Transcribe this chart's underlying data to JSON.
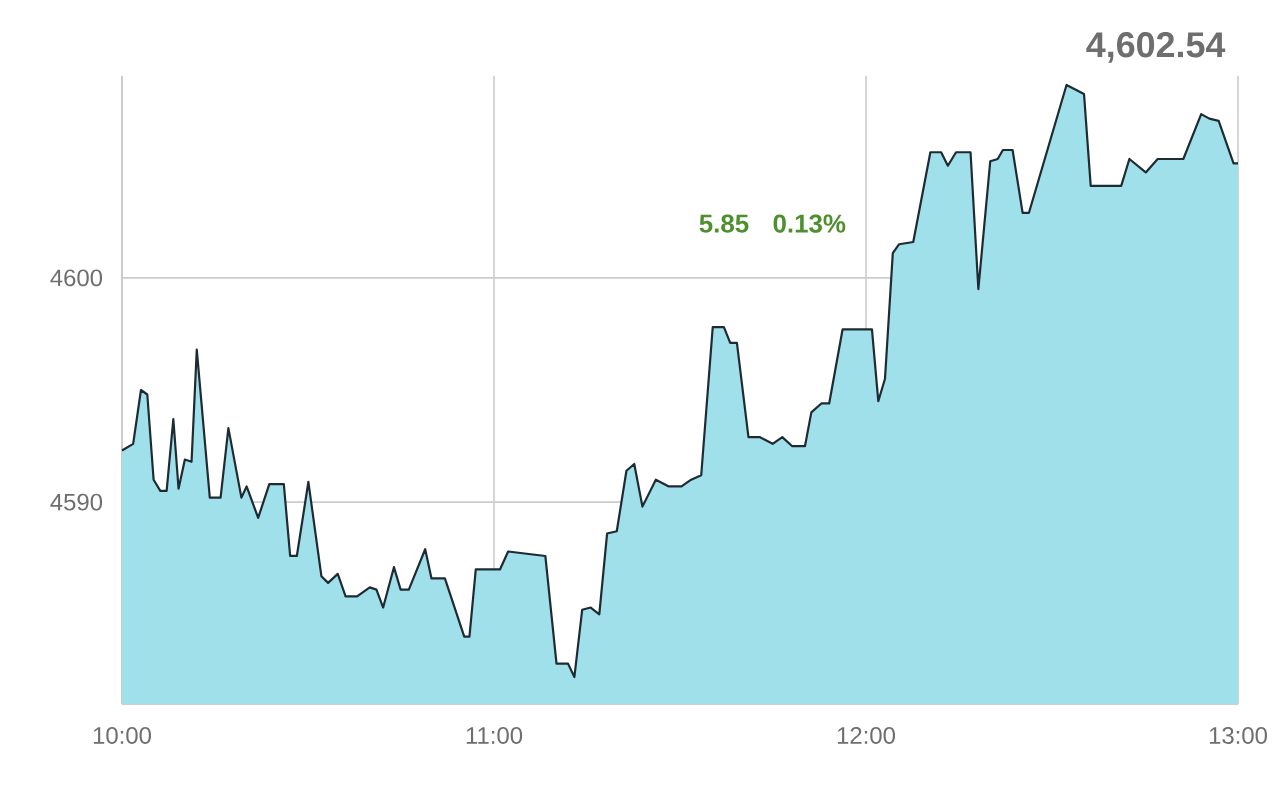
{
  "chart_data": {
    "type": "area",
    "title": "4,602.54",
    "annotations": [
      "5.85",
      "0.13%"
    ],
    "x": [
      10.0,
      10.03,
      10.051,
      10.068,
      10.085,
      10.103,
      10.12,
      10.138,
      10.152,
      10.169,
      10.187,
      10.201,
      10.236,
      10.265,
      10.286,
      10.321,
      10.335,
      10.366,
      10.396,
      10.435,
      10.452,
      10.47,
      10.501,
      10.536,
      10.554,
      10.58,
      10.601,
      10.632,
      10.666,
      10.684,
      10.702,
      10.731,
      10.749,
      10.771,
      10.815,
      10.832,
      10.868,
      10.92,
      10.934,
      10.951,
      11.016,
      11.038,
      11.138,
      11.168,
      11.199,
      11.216,
      11.237,
      11.26,
      11.283,
      11.304,
      11.33,
      11.356,
      11.377,
      11.399,
      11.435,
      11.47,
      11.504,
      11.53,
      11.557,
      11.588,
      11.618,
      11.635,
      11.653,
      11.684,
      11.714,
      11.749,
      11.775,
      11.801,
      11.836,
      11.853,
      11.88,
      11.901,
      11.937,
      12.016,
      12.033,
      12.051,
      12.072,
      12.089,
      12.127,
      12.173,
      12.202,
      12.22,
      12.242,
      12.281,
      12.302,
      12.334,
      12.354,
      12.368,
      12.394,
      12.421,
      12.438,
      12.539,
      12.586,
      12.604,
      12.686,
      12.708,
      12.752,
      12.784,
      12.853,
      12.901,
      12.923,
      12.948,
      12.988,
      13.0
    ],
    "series": [
      {
        "color": "#a0e0ea",
        "values": [
          4592.3,
          4592.6,
          4595.0,
          4594.8,
          4591.0,
          4590.5,
          4590.5,
          4593.7,
          4590.6,
          4591.9,
          4591.8,
          4596.8,
          4590.2,
          4590.2,
          4593.3,
          4590.2,
          4590.7,
          4589.3,
          4590.8,
          4590.8,
          4587.6,
          4587.6,
          4590.9,
          4586.7,
          4586.4,
          4586.8,
          4585.8,
          4585.8,
          4586.2,
          4586.1,
          4585.3,
          4587.1,
          4586.1,
          4586.1,
          4587.9,
          4586.6,
          4586.6,
          4584.0,
          4584.0,
          4587.0,
          4587.0,
          4587.8,
          4587.6,
          4582.8,
          4582.8,
          4582.2,
          4585.2,
          4585.3,
          4585.0,
          4588.6,
          4588.7,
          4591.4,
          4591.7,
          4589.8,
          4591.0,
          4590.7,
          4590.7,
          4591.0,
          4591.2,
          4597.8,
          4597.8,
          4597.1,
          4597.1,
          4592.9,
          4592.9,
          4592.6,
          4592.9,
          4592.5,
          4592.5,
          4594.0,
          4594.4,
          4594.4,
          4597.7,
          4597.7,
          4594.5,
          4595.5,
          4601.1,
          4601.5,
          4601.6,
          4605.6,
          4605.6,
          4605.0,
          4605.6,
          4605.6,
          4599.5,
          4605.2,
          4605.3,
          4605.7,
          4605.7,
          4602.9,
          4602.9,
          4608.6,
          4608.2,
          4604.1,
          4604.1,
          4605.3,
          4604.7,
          4605.3,
          4605.3,
          4607.3,
          4607.1,
          4607.0,
          4605.1,
          4605.1
        ]
      }
    ],
    "xlim": [
      10,
      13
    ],
    "ylim": [
      4581,
      4609
    ],
    "xticks": [
      {
        "value": 10,
        "label": "10:00"
      },
      {
        "value": 11,
        "label": "11:00"
      },
      {
        "value": 12,
        "label": "12:00"
      },
      {
        "value": 13,
        "label": "13:00"
      }
    ],
    "yticks": [
      4590,
      4600
    ],
    "grid": true
  }
}
